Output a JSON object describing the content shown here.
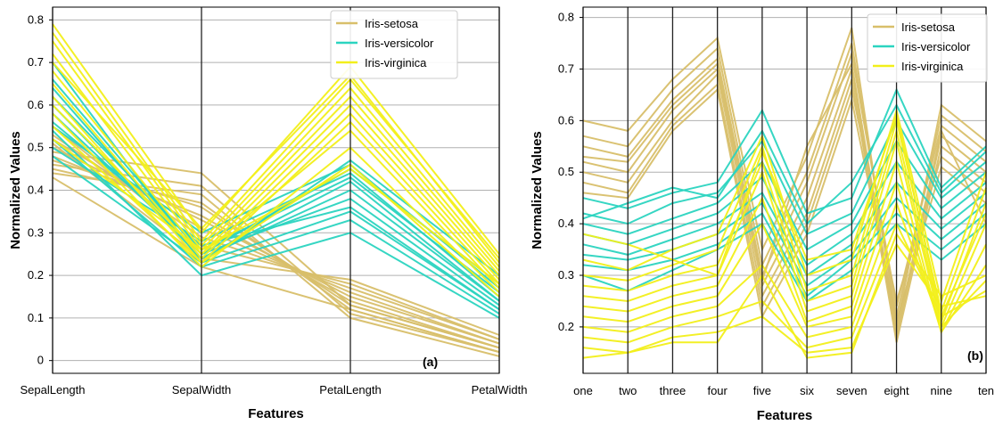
{
  "chart_data": [
    {
      "type": "parallel-coordinates",
      "panel_label": "(a)",
      "xlabel": "Features",
      "ylabel": "Normalized Values",
      "categories": [
        "SepalLength",
        "SepalWidth",
        "PetalLength",
        "PetalWidth"
      ],
      "yticks": [
        "0",
        "0.1",
        "0.2",
        "0.3",
        "0.4",
        "0.5",
        "0.6",
        "0.7",
        "0.8"
      ],
      "ylim": [
        -0.03,
        0.83
      ],
      "grid": true,
      "legend_position": "top-right",
      "series": [
        {
          "name": "Iris-setosa",
          "color": "#d8bf6a",
          "lines": [
            [
              0.44,
              0.39,
              0.1,
              0.01
            ],
            [
              0.45,
              0.37,
              0.12,
              0.02
            ],
            [
              0.47,
              0.36,
              0.13,
              0.03
            ],
            [
              0.48,
              0.34,
              0.14,
              0.03
            ],
            [
              0.5,
              0.33,
              0.15,
              0.04
            ],
            [
              0.52,
              0.31,
              0.16,
              0.04
            ],
            [
              0.53,
              0.29,
              0.17,
              0.05
            ],
            [
              0.55,
              0.27,
              0.18,
              0.05
            ],
            [
              0.46,
              0.41,
              0.11,
              0.02
            ],
            [
              0.49,
              0.44,
              0.13,
              0.03
            ],
            [
              0.51,
              0.24,
              0.19,
              0.06
            ],
            [
              0.43,
              0.22,
              0.12,
              0.02
            ]
          ]
        },
        {
          "name": "Iris-versicolor",
          "color": "#2bd4c0",
          "lines": [
            [
              0.7,
              0.23,
              0.47,
              0.2
            ],
            [
              0.66,
              0.25,
              0.45,
              0.18
            ],
            [
              0.62,
              0.26,
              0.43,
              0.16
            ],
            [
              0.6,
              0.24,
              0.4,
              0.14
            ],
            [
              0.58,
              0.25,
              0.38,
              0.13
            ],
            [
              0.56,
              0.27,
              0.36,
              0.12
            ],
            [
              0.54,
              0.2,
              0.3,
              0.1
            ],
            [
              0.52,
              0.22,
              0.33,
              0.11
            ],
            [
              0.5,
              0.28,
              0.44,
              0.15
            ],
            [
              0.55,
              0.3,
              0.46,
              0.17
            ],
            [
              0.64,
              0.24,
              0.42,
              0.14
            ],
            [
              0.48,
              0.23,
              0.35,
              0.12
            ]
          ]
        },
        {
          "name": "Iris-virginica",
          "color": "#f2ef1a",
          "lines": [
            [
              0.79,
              0.3,
              0.69,
              0.25
            ],
            [
              0.77,
              0.28,
              0.66,
              0.24
            ],
            [
              0.75,
              0.27,
              0.64,
              0.22
            ],
            [
              0.72,
              0.26,
              0.62,
              0.21
            ],
            [
              0.68,
              0.25,
              0.6,
              0.2
            ],
            [
              0.65,
              0.24,
              0.58,
              0.19
            ],
            [
              0.62,
              0.23,
              0.56,
              0.18
            ],
            [
              0.6,
              0.25,
              0.54,
              0.17
            ],
            [
              0.58,
              0.22,
              0.5,
              0.16
            ],
            [
              0.55,
              0.23,
              0.46,
              0.15
            ],
            [
              0.52,
              0.26,
              0.45,
              0.18
            ],
            [
              0.7,
              0.31,
              0.67,
              0.23
            ]
          ]
        }
      ]
    },
    {
      "type": "parallel-coordinates",
      "panel_label": "(b)",
      "xlabel": "Features",
      "ylabel": "Normalized Values",
      "categories": [
        "one",
        "two",
        "three",
        "four",
        "five",
        "six",
        "seven",
        "eight",
        "nine",
        "ten"
      ],
      "yticks": [
        "0.2",
        "0.3",
        "0.4",
        "0.5",
        "0.6",
        "0.7",
        "0.8"
      ],
      "ylim": [
        0.11,
        0.82
      ],
      "grid": true,
      "legend_position": "top-right",
      "series": [
        {
          "name": "Iris-setosa",
          "color": "#d8bf6a",
          "lines": [
            [
              0.6,
              0.58,
              0.68,
              0.76,
              0.35,
              0.53,
              0.78,
              0.2,
              0.63,
              0.56
            ],
            [
              0.57,
              0.55,
              0.66,
              0.74,
              0.32,
              0.5,
              0.75,
              0.22,
              0.61,
              0.54
            ],
            [
              0.55,
              0.53,
              0.64,
              0.72,
              0.3,
              0.48,
              0.73,
              0.24,
              0.59,
              0.52
            ],
            [
              0.52,
              0.5,
              0.62,
              0.7,
              0.28,
              0.45,
              0.7,
              0.18,
              0.57,
              0.5
            ],
            [
              0.5,
              0.48,
              0.6,
              0.69,
              0.26,
              0.42,
              0.68,
              0.17,
              0.55,
              0.48
            ],
            [
              0.48,
              0.46,
              0.59,
              0.67,
              0.24,
              0.4,
              0.66,
              0.25,
              0.53,
              0.46
            ],
            [
              0.46,
              0.45,
              0.58,
              0.66,
              0.22,
              0.38,
              0.64,
              0.21,
              0.51,
              0.44
            ],
            [
              0.53,
              0.52,
              0.63,
              0.71,
              0.29,
              0.55,
              0.71,
              0.19,
              0.58,
              0.4
            ]
          ]
        },
        {
          "name": "Iris-versicolor",
          "color": "#2bd4c0",
          "lines": [
            [
              0.45,
              0.43,
              0.46,
              0.48,
              0.62,
              0.42,
              0.45,
              0.66,
              0.47,
              0.55
            ],
            [
              0.42,
              0.4,
              0.44,
              0.46,
              0.56,
              0.38,
              0.42,
              0.6,
              0.45,
              0.52
            ],
            [
              0.4,
              0.38,
              0.41,
              0.44,
              0.52,
              0.35,
              0.4,
              0.56,
              0.43,
              0.5
            ],
            [
              0.38,
              0.36,
              0.39,
              0.42,
              0.49,
              0.32,
              0.38,
              0.52,
              0.41,
              0.48
            ],
            [
              0.36,
              0.34,
              0.37,
              0.4,
              0.46,
              0.3,
              0.36,
              0.48,
              0.39,
              0.46
            ],
            [
              0.34,
              0.33,
              0.35,
              0.38,
              0.44,
              0.28,
              0.34,
              0.45,
              0.37,
              0.44
            ],
            [
              0.32,
              0.31,
              0.33,
              0.36,
              0.42,
              0.26,
              0.33,
              0.42,
              0.35,
              0.42
            ],
            [
              0.3,
              0.27,
              0.31,
              0.35,
              0.4,
              0.25,
              0.31,
              0.4,
              0.33,
              0.4
            ],
            [
              0.41,
              0.44,
              0.47,
              0.45,
              0.58,
              0.4,
              0.48,
              0.63,
              0.46,
              0.54
            ]
          ]
        },
        {
          "name": "Iris-virginica",
          "color": "#f2ef1a",
          "lines": [
            [
              0.33,
              0.31,
              0.35,
              0.38,
              0.57,
              0.3,
              0.33,
              0.62,
              0.25,
              0.5
            ],
            [
              0.3,
              0.29,
              0.32,
              0.35,
              0.55,
              0.27,
              0.3,
              0.6,
              0.23,
              0.47
            ],
            [
              0.28,
              0.27,
              0.3,
              0.32,
              0.52,
              0.25,
              0.28,
              0.58,
              0.21,
              0.44
            ],
            [
              0.26,
              0.25,
              0.28,
              0.3,
              0.5,
              0.23,
              0.26,
              0.56,
              0.2,
              0.4
            ],
            [
              0.24,
              0.23,
              0.26,
              0.28,
              0.45,
              0.21,
              0.24,
              0.52,
              0.19,
              0.36
            ],
            [
              0.22,
              0.21,
              0.24,
              0.26,
              0.4,
              0.2,
              0.22,
              0.48,
              0.19,
              0.32
            ],
            [
              0.2,
              0.19,
              0.22,
              0.24,
              0.32,
              0.18,
              0.2,
              0.44,
              0.2,
              0.29
            ],
            [
              0.18,
              0.17,
              0.2,
              0.22,
              0.25,
              0.16,
              0.18,
              0.4,
              0.22,
              0.27
            ],
            [
              0.16,
              0.15,
              0.18,
              0.19,
              0.22,
              0.15,
              0.16,
              0.36,
              0.24,
              0.26
            ],
            [
              0.14,
              0.15,
              0.17,
              0.17,
              0.3,
              0.14,
              0.15,
              0.38,
              0.26,
              0.3
            ],
            [
              0.38,
              0.36,
              0.33,
              0.3,
              0.54,
              0.33,
              0.35,
              0.61,
              0.22,
              0.42
            ]
          ]
        }
      ]
    }
  ]
}
